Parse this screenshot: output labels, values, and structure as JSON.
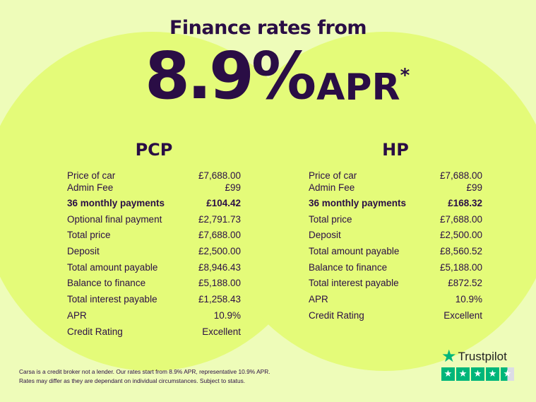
{
  "title": "Finance rates from",
  "hero": {
    "rate": "8.9%",
    "suffix": "APR",
    "asterisk": "*"
  },
  "pcp": {
    "heading": "PCP",
    "rows": [
      {
        "label": "Price of car",
        "value": "£7,688.00"
      },
      {
        "label": "Admin Fee",
        "value": "£99"
      },
      {
        "label": "36 monthly payments",
        "value": "£104.42"
      },
      {
        "label": "Optional final payment",
        "value": "£2,791.73"
      },
      {
        "label": "Total price",
        "value": "£7,688.00"
      },
      {
        "label": "Deposit",
        "value": "£2,500.00"
      },
      {
        "label": "Total amount payable",
        "value": "£8,946.43"
      },
      {
        "label": "Balance to finance",
        "value": "£5,188.00"
      },
      {
        "label": "Total interest payable",
        "value": "£1,258.43"
      },
      {
        "label": "APR",
        "value": "10.9%"
      },
      {
        "label": "Credit Rating",
        "value": "Excellent"
      }
    ]
  },
  "hp": {
    "heading": "HP",
    "rows": [
      {
        "label": "Price of car",
        "value": "£7,688.00"
      },
      {
        "label": "Admin Fee",
        "value": "£99"
      },
      {
        "label": "36 monthly payments",
        "value": "£168.32"
      },
      {
        "label": "Total price",
        "value": "£7,688.00"
      },
      {
        "label": "Deposit",
        "value": "£2,500.00"
      },
      {
        "label": "Total amount payable",
        "value": "£8,560.52"
      },
      {
        "label": "Balance to finance",
        "value": "£5,188.00"
      },
      {
        "label": "Total interest payable",
        "value": "£872.52"
      },
      {
        "label": "APR",
        "value": "10.9%"
      },
      {
        "label": "Credit Rating",
        "value": "Excellent"
      }
    ]
  },
  "disclaimer": {
    "line1": "Carsa is a credit broker not a lender. Our rates start from 8.9% APR, representative 10.9% APR.",
    "line2": "Rates may differ as they are dependant on individual circumstances. Subject to status."
  },
  "trustpilot": {
    "name": "Trustpilot",
    "rating_stars": 4.5,
    "color": "#00b67a"
  },
  "colors": {
    "text": "#2a0d45",
    "background": "#eefcb9",
    "circle": "#e4fb79"
  }
}
